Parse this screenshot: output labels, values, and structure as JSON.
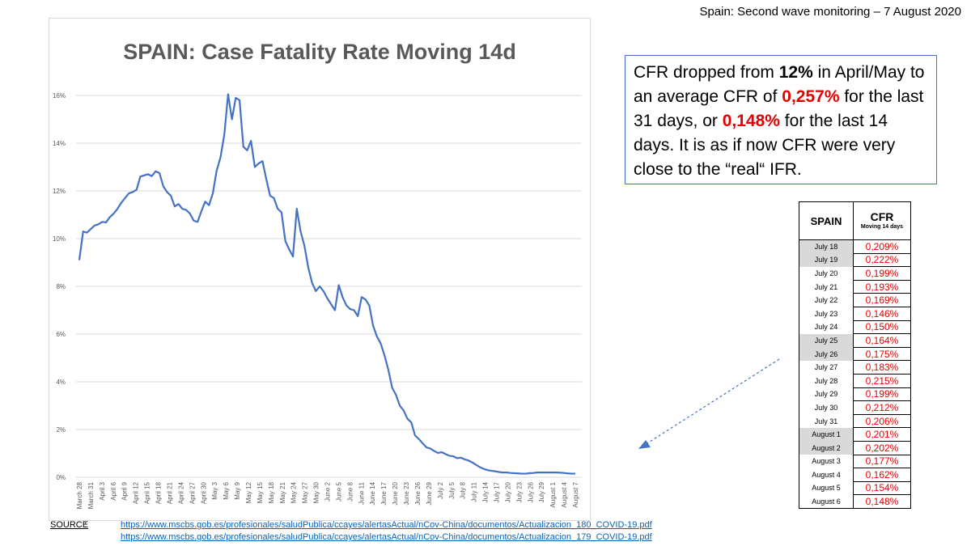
{
  "header": {
    "text": "Spain:  Second wave monitoring – 7 August 2020"
  },
  "chart_data": {
    "type": "line",
    "title": "SPAIN: Case Fatality Rate Moving 14d",
    "xlabel": "",
    "ylabel": "",
    "ylim": [
      0,
      16
    ],
    "y_ticks": [
      "0%",
      "2%",
      "4%",
      "6%",
      "8%",
      "10%",
      "12%",
      "14%",
      "16%"
    ],
    "x_tick_labels": [
      "March 28",
      "March 31",
      "April 3",
      "April 6",
      "April 9",
      "April 12",
      "April 15",
      "April 18",
      "April 21",
      "April 24",
      "April 27",
      "April 30",
      "May 3",
      "May 6",
      "May 9",
      "May 12",
      "May 15",
      "May 18",
      "May 21",
      "May 24",
      "May 27",
      "May 30",
      "June 2",
      "June 5",
      "June 8",
      "June 11",
      "June 14",
      "June 17",
      "June 20",
      "June 23",
      "June 26",
      "June 29",
      "July 2",
      "July 5",
      "July 8",
      "July 11",
      "July 14",
      "July 17",
      "July 20",
      "July 23",
      "July 26",
      "July 29",
      "August 1",
      "August 4",
      "August 7"
    ],
    "series_color": "#4472c4",
    "series": [
      {
        "name": "CFR moving 14d (%)",
        "values": [
          9.1,
          10.3,
          10.25,
          10.4,
          10.55,
          10.6,
          10.7,
          10.68,
          10.9,
          11.05,
          11.25,
          11.5,
          11.7,
          11.9,
          11.95,
          12.05,
          12.6,
          12.65,
          12.7,
          12.62,
          12.82,
          12.75,
          12.2,
          11.95,
          11.8,
          11.35,
          11.45,
          11.25,
          11.2,
          11.05,
          10.75,
          10.7,
          11.15,
          11.55,
          11.4,
          11.9,
          12.85,
          13.4,
          14.35,
          16.05,
          15.0,
          15.9,
          15.8,
          13.85,
          13.7,
          14.1,
          13.0,
          13.15,
          13.25,
          12.5,
          11.8,
          11.7,
          11.25,
          11.1,
          9.9,
          9.55,
          9.25,
          11.25,
          10.3,
          9.7,
          8.8,
          8.15,
          7.8,
          8.0,
          7.8,
          7.5,
          7.25,
          7.0,
          8.05,
          7.55,
          7.2,
          7.05,
          7.0,
          6.75,
          7.55,
          7.45,
          7.2,
          6.35,
          5.9,
          5.6,
          5.1,
          4.5,
          3.75,
          3.45,
          3.0,
          2.8,
          2.45,
          2.3,
          1.75,
          1.6,
          1.42,
          1.25,
          1.2,
          1.1,
          1.02,
          1.05,
          0.97,
          0.9,
          0.88,
          0.8,
          0.82,
          0.75,
          0.7,
          0.62,
          0.52,
          0.42,
          0.35,
          0.3,
          0.27,
          0.25,
          0.22,
          0.2,
          0.2,
          0.18,
          0.17,
          0.16,
          0.15,
          0.15,
          0.17,
          0.18,
          0.2,
          0.2,
          0.2,
          0.2,
          0.2,
          0.2,
          0.19,
          0.18,
          0.16,
          0.15,
          0.15
        ]
      }
    ]
  },
  "callout": {
    "part1": "CFR dropped from ",
    "bold1": "12%",
    "part2": " in April/May to an average CFR of ",
    "red1": "0,257%",
    "part3": " for the last 31 days, or ",
    "red2": "0,148%",
    "part4": " for the last 14 days. It is as if now CFR were very close to the “real“ IFR."
  },
  "table": {
    "header_country": "SPAIN",
    "header_cfr": "CFR",
    "header_sub": "Moving 14 days",
    "rows": [
      {
        "date": "July 18",
        "value": "0,209%",
        "shaded": true
      },
      {
        "date": "July 19",
        "value": "0,222%",
        "shaded": true
      },
      {
        "date": "July 20",
        "value": "0,199%",
        "shaded": false
      },
      {
        "date": "July 21",
        "value": "0,193%",
        "shaded": false
      },
      {
        "date": "July 22",
        "value": "0,169%",
        "shaded": false
      },
      {
        "date": "July 23",
        "value": "0,146%",
        "shaded": false
      },
      {
        "date": "July 24",
        "value": "0,150%",
        "shaded": false
      },
      {
        "date": "July 25",
        "value": "0,164%",
        "shaded": true
      },
      {
        "date": "July 26",
        "value": "0,175%",
        "shaded": true
      },
      {
        "date": "July 27",
        "value": "0,183%",
        "shaded": false
      },
      {
        "date": "July 28",
        "value": "0,215%",
        "shaded": false
      },
      {
        "date": "July 29",
        "value": "0,199%",
        "shaded": false
      },
      {
        "date": "July 30",
        "value": "0,212%",
        "shaded": false
      },
      {
        "date": "July 31",
        "value": "0,206%",
        "shaded": false
      },
      {
        "date": "August 1",
        "value": "0,201%",
        "shaded": true
      },
      {
        "date": "August 2",
        "value": "0,202%",
        "shaded": true
      },
      {
        "date": "August 3",
        "value": "0,177%",
        "shaded": false
      },
      {
        "date": "August 4",
        "value": "0,162%",
        "shaded": false
      },
      {
        "date": "August 5",
        "value": "0,154%",
        "shaded": false
      },
      {
        "date": "August 6",
        "value": "0,148%",
        "shaded": false
      }
    ]
  },
  "source": {
    "label": "SOURCE",
    "suffix": ":",
    "links": [
      "https://www.mscbs.gob.es/profesionales/saludPublica/ccayes/alertasActual/nCov-China/documentos/Actualizacion_180_COVID-19.pdf",
      "https://www.mscbs.gob.es/profesionales/saludPublica/ccayes/alertasActual/nCov-China/documentos/Actualizacion_179_COVID-19.pdf"
    ]
  }
}
